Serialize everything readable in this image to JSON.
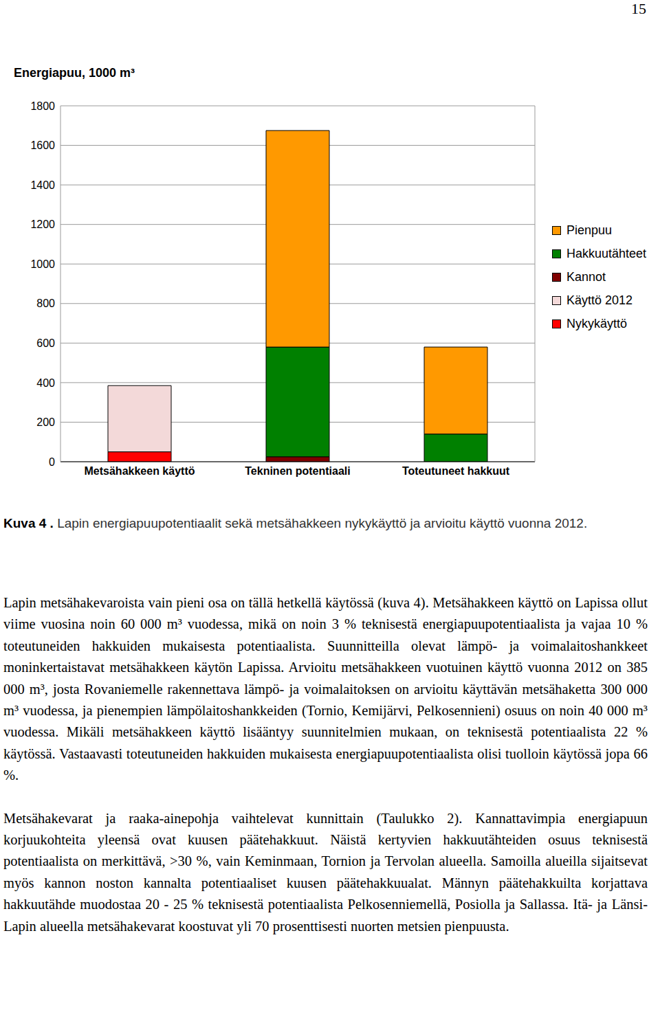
{
  "page_number": "15",
  "chart_data": {
    "type": "bar",
    "title": "Energiapuu, 1000 m³",
    "categories": [
      "Metsähakkeen käyttö",
      "Tekninen potentiaali",
      "Toteutuneet hakkuut"
    ],
    "series": [
      {
        "name": "Nykykäyttö",
        "color": "#ff0000",
        "values": [
          50,
          null,
          null
        ]
      },
      {
        "name": "Käyttö 2012",
        "color": "#f3d9d9",
        "values": [
          335,
          null,
          null
        ]
      },
      {
        "name": "Kannot",
        "color": "#800000",
        "values": [
          null,
          25,
          null
        ]
      },
      {
        "name": "Hakkuutähteet",
        "color": "#008000",
        "values": [
          null,
          555,
          140
        ]
      },
      {
        "name": "Pienpuu",
        "color": "#ff9900",
        "values": [
          null,
          1095,
          440
        ]
      }
    ],
    "ylim": [
      0,
      1800
    ],
    "yticks": [
      0,
      200,
      400,
      600,
      800,
      1000,
      1200,
      1400,
      1600,
      1800
    ],
    "stacked": true,
    "grid": true,
    "legend": "right"
  },
  "caption": {
    "label": "Kuva 4 .",
    "text": "Lapin energiapuupotentiaalit sekä metsähakkeen nykykäyttö ja arvioitu käyttö vuonna 2012."
  },
  "paragraphs": [
    "Lapin metsähakevaroista vain pieni osa on tällä hetkellä käytössä (kuva 4). Metsähakkeen käyttö on Lapissa ollut viime vuosina noin 60 000 m³ vuodessa, mikä on noin 3 % teknisestä energiapuupotentiaalista ja vajaa 10 % toteutuneiden hakkuiden mukaisesta potentiaalista. Suunnitteilla olevat lämpö- ja voimalaitoshankkeet moninkertaistavat metsähakkeen käytön Lapissa. Arvioitu metsähakkeen vuotuinen käyttö vuonna 2012 on 385 000 m³, josta Rovaniemelle rakennettava lämpö- ja voimalaitoksen on arvioitu käyttävän metsähaketta 300 000 m³ vuodessa, ja pienempien lämpölaitoshankkeiden (Tornio, Kemijärvi, Pelkosennieni) osuus on noin 40 000 m³ vuodessa. Mikäli metsähakkeen käyttö lisääntyy suunnitelmien mukaan, on teknisestä potentiaalista 22 % käytössä. Vastaavasti toteutuneiden hakkuiden mukaisesta energiapuupotentiaalista olisi tuolloin käytössä jopa 66 %.",
    "Metsähakevarat ja raaka-ainepohja vaihtelevat kunnittain (Taulukko 2). Kannattavimpia energiapuun korjuukohteita yleensä ovat kuusen päätehakkuut. Näistä kertyvien hakkuutähteiden osuus teknisestä potentiaalista on merkittävä, >30 %, vain Keminmaan, Tornion ja Tervolan alueella. Samoilla alueilla sijaitsevat myös kannon noston kannalta potentiaaliset kuusen päätehakkuualat. Männyn päätehakkuilta korjattava hakkuutähde muodostaa 20 - 25 % teknisestä potentiaalista Pelkosenniemellä, Posiolla ja Sallassa. Itä- ja Länsi-Lapin alueella metsähakevarat koostuvat yli 70 prosenttisesti nuorten metsien pienpuusta."
  ]
}
